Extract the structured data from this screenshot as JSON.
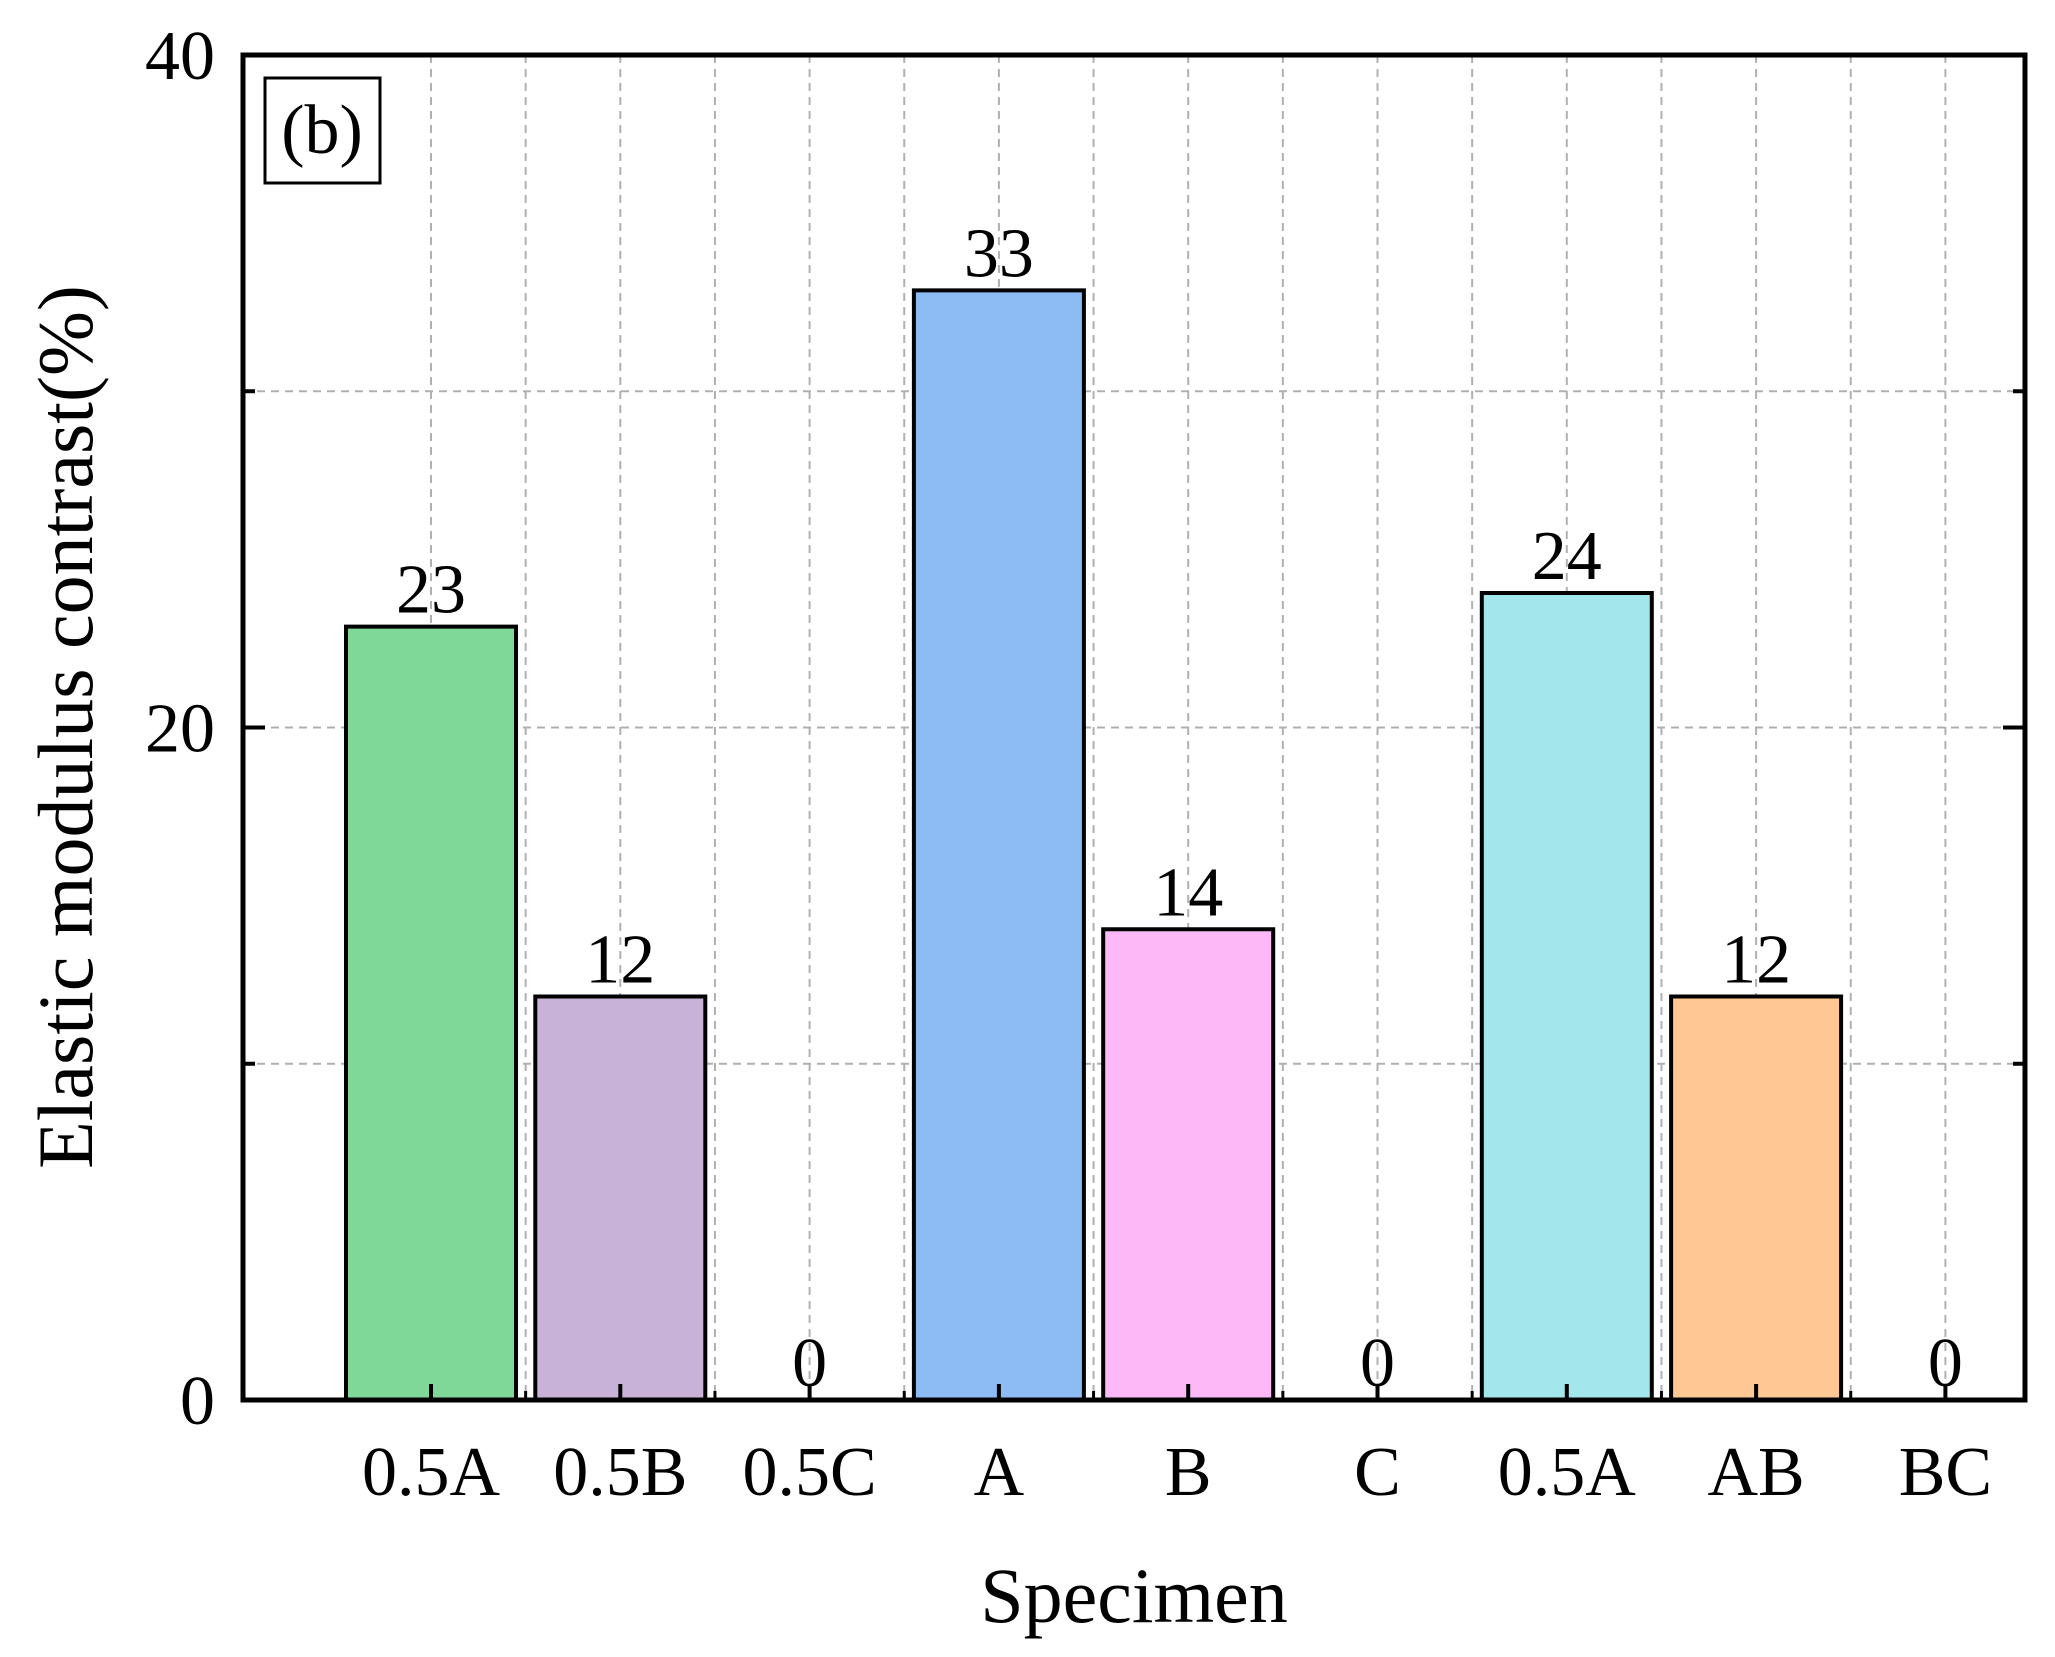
{
  "chart_data": {
    "type": "bar",
    "panel_label": "(b)",
    "xlabel": "Specimen",
    "ylabel": "Elastic modulus contrast(%)",
    "ylim": [
      0,
      40
    ],
    "yticks": [
      0,
      20,
      40
    ],
    "grid": true,
    "categories": [
      "0.5A",
      "0.5B",
      "0.5C",
      "A",
      "B",
      "C",
      "0.5A",
      "AB",
      "BC"
    ],
    "values": [
      23,
      12,
      0,
      33,
      14,
      0,
      24,
      12,
      0
    ],
    "value_labels": [
      "23",
      "12",
      "0",
      "33",
      "14",
      "0",
      "24",
      "12",
      "0"
    ],
    "bar_colors": [
      "#7fd897",
      "#c8b2d8",
      "#ffffff",
      "#8dbcf5",
      "#fdb8f7",
      "#ffffff",
      "#a3e6ec",
      "#fdc894",
      "#ffffff"
    ],
    "edge_color": "#000000",
    "grid_color": "#b0b0b0"
  }
}
